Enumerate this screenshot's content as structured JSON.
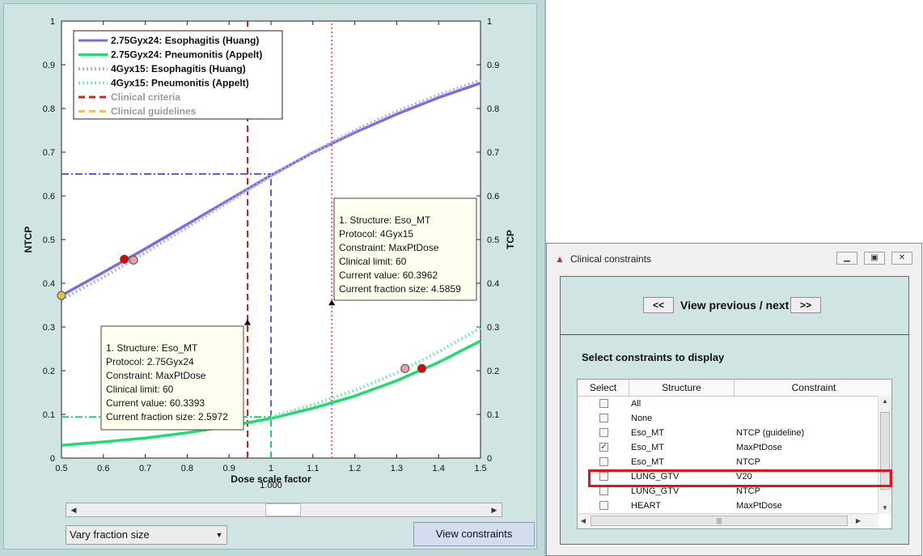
{
  "chart_data": {
    "type": "line",
    "title": "",
    "xlabel": "Dose scale factor",
    "ylabel": "NTCP",
    "y2label": "TCP",
    "xlim": [
      0.5,
      1.5
    ],
    "ylim": [
      0,
      1
    ],
    "x_ticks": [
      "0.5",
      "0.6",
      "0.7",
      "0.8",
      "0.9",
      "1",
      "1.1",
      "1.2",
      "1.3",
      "1.4",
      "1.5"
    ],
    "y_ticks": [
      "0",
      "0.1",
      "0.2",
      "0.3",
      "0.4",
      "0.5",
      "0.6",
      "0.7",
      "0.8",
      "0.9",
      "1"
    ],
    "y2_ticks": [
      "0",
      "0.1",
      "0.2",
      "0.3",
      "0.4",
      "0.5",
      "0.6",
      "0.7",
      "0.8",
      "0.9",
      "1"
    ],
    "x_marker_label": "1.000",
    "grid": false,
    "legend_position": "top-left",
    "series": [
      {
        "name": "2.75Gyx24: Esophagitis (Huang)",
        "color": "#7b6be0",
        "style": "solid",
        "x": [
          0.5,
          0.6,
          0.7,
          0.8,
          0.9,
          1.0,
          1.1,
          1.2,
          1.3,
          1.4,
          1.5
        ],
        "y": [
          0.372,
          0.425,
          0.479,
          0.535,
          0.591,
          0.647,
          0.699,
          0.745,
          0.787,
          0.825,
          0.858
        ]
      },
      {
        "name": "2.75Gyx24: Pneumonitis (Appelt)",
        "color": "#1fdc70",
        "style": "solid",
        "x": [
          0.5,
          0.6,
          0.7,
          0.8,
          0.9,
          1.0,
          1.1,
          1.2,
          1.3,
          1.4,
          1.5
        ],
        "y": [
          0.029,
          0.037,
          0.046,
          0.058,
          0.073,
          0.091,
          0.114,
          0.142,
          0.177,
          0.219,
          0.268
        ]
      },
      {
        "name": "4Gyx15: Esophagitis (Huang)",
        "color": "#b3aef0",
        "style": "dotted",
        "x": [
          0.5,
          0.6,
          0.7,
          0.8,
          0.9,
          1.0,
          1.1,
          1.2,
          1.3,
          1.4,
          1.5
        ],
        "y": [
          0.363,
          0.414,
          0.47,
          0.528,
          0.587,
          0.645,
          0.7,
          0.75,
          0.793,
          0.831,
          0.864
        ]
      },
      {
        "name": "4Gyx15: Pneumonitis (Appelt)",
        "color": "#86e6c2",
        "style": "dotted",
        "x": [
          1.0,
          1.1,
          1.2,
          1.3,
          1.4,
          1.5
        ],
        "y": [
          0.095,
          0.122,
          0.155,
          0.195,
          0.243,
          0.298
        ]
      },
      {
        "name": "Clinical criteria",
        "color": "#cc2222",
        "style": "dashed",
        "dimmed": true
      },
      {
        "name": "Clinical guidelines",
        "color": "#e8c35a",
        "style": "dashed",
        "dimmed": true
      }
    ],
    "reference_lines": [
      {
        "type": "vertical",
        "x": 0.944,
        "color": "#cc2222",
        "style": "dashed"
      },
      {
        "type": "vertical",
        "x": 1.145,
        "color": "#e07070",
        "style": "dotted"
      },
      {
        "type": "vertical",
        "x": 1.0,
        "y_from": 0,
        "y_to": 0.094,
        "color": "#20d070",
        "style": "dashed"
      },
      {
        "type": "vertical",
        "x": 1.0,
        "y_from": 0.094,
        "y_to": 0.647,
        "color": "#6a5ad0",
        "style": "dashed"
      },
      {
        "type": "horizontal",
        "y": 0.65,
        "x_from": 0.5,
        "x_to": 1.0,
        "color": "#6a5ad0",
        "style": "dashdot"
      },
      {
        "type": "horizontal",
        "y": 0.094,
        "x_from": 0.5,
        "x_to": 1.0,
        "color": "#20d070",
        "style": "dashdot"
      }
    ],
    "markers": [
      {
        "x": 0.5,
        "y": 0.372,
        "color": "#e8c040",
        "shape": "circle"
      },
      {
        "x": 0.65,
        "y": 0.455,
        "color": "#e00000",
        "shape": "circle"
      },
      {
        "x": 0.672,
        "y": 0.453,
        "color": "#f0a0a0",
        "shape": "circle"
      },
      {
        "x": 1.36,
        "y": 0.205,
        "color": "#e00000",
        "shape": "circle"
      },
      {
        "x": 1.32,
        "y": 0.205,
        "color": "#f0a0a0",
        "shape": "circle"
      },
      {
        "x": 0.944,
        "y": 0.31,
        "color": "#000000",
        "shape": "triangle"
      },
      {
        "x": 1.145,
        "y": 0.355,
        "color": "#000000",
        "shape": "triangle"
      }
    ],
    "annotations": [
      {
        "lines": [
          "1. Structure: Eso_MT",
          "Protocol: 4Gyx15",
          "Constraint: MaxPtDose",
          "Clinical limit: 60",
          "Current value: 60.3962",
          "Current fraction size: 4.5859"
        ]
      },
      {
        "lines": [
          "1. Structure: Eso_MT",
          "Protocol: 2.75Gyx24",
          "Constraint: MaxPtDose",
          "Clinical limit: 60",
          "Current value: 60.3393",
          "Current fraction size: 2.5972"
        ]
      }
    ]
  },
  "controls": {
    "dropdown_value": "Vary fraction size",
    "view_button": "View constraints"
  },
  "dialog": {
    "title": "Clinical constraints",
    "prev_label": "<<",
    "next_label": ">>",
    "nav_label": "View previous / next",
    "section_title": "Select constraints to display",
    "columns": [
      "Select",
      "Structure",
      "Constraint"
    ],
    "rows": [
      {
        "structure": "All",
        "constraint": "",
        "checked": false
      },
      {
        "structure": "None",
        "constraint": "",
        "checked": false
      },
      {
        "structure": "Eso_MT",
        "constraint": "NTCP (guideline)",
        "checked": false
      },
      {
        "structure": "Eso_MT",
        "constraint": "MaxPtDose",
        "checked": true
      },
      {
        "structure": "Eso_MT",
        "constraint": "NTCP",
        "checked": false
      },
      {
        "structure": "LUNG_GTV",
        "constraint": "V20",
        "checked": false
      },
      {
        "structure": "LUNG_GTV",
        "constraint": "NTCP",
        "checked": false
      },
      {
        "structure": "HEART",
        "constraint": "MaxPtDose",
        "checked": false
      }
    ]
  }
}
